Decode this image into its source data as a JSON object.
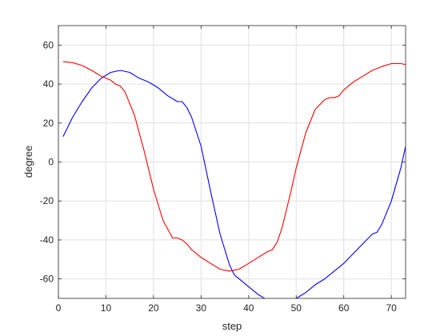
{
  "chart_data": {
    "type": "line",
    "xlabel": "step",
    "ylabel": "degree",
    "xlim": [
      0,
      73
    ],
    "ylim": [
      -70,
      70
    ],
    "grid": true,
    "xticks": [
      0,
      10,
      20,
      30,
      40,
      50,
      60,
      70
    ],
    "yticks": [
      -60,
      -40,
      -20,
      0,
      20,
      40,
      60
    ],
    "series": [
      {
        "color": "#0000ff",
        "x": [
          1,
          3,
          5,
          7,
          9,
          11,
          13,
          15,
          17,
          19,
          21,
          23,
          25,
          26,
          27,
          28,
          30,
          32,
          34,
          36,
          37,
          38,
          40,
          42,
          44,
          45,
          46,
          48,
          50,
          52,
          54,
          56,
          58,
          60,
          62,
          64,
          66,
          67,
          68,
          70,
          72,
          73
        ],
        "y": [
          13,
          23,
          31,
          38,
          43,
          46,
          47,
          46,
          43,
          41,
          38,
          34,
          31,
          31,
          28,
          23,
          8,
          -15,
          -37,
          -53,
          -58,
          -60,
          -64,
          -68,
          -71,
          -72,
          -73,
          -72,
          -70,
          -67,
          -63,
          -60,
          -56,
          -52,
          -47,
          -42,
          -37,
          -36,
          -32,
          -20,
          -3,
          8
        ]
      },
      {
        "color": "#ff0000",
        "x": [
          1,
          3,
          5,
          7,
          9,
          10,
          11,
          12,
          13,
          14,
          16,
          18,
          20,
          22,
          24,
          25,
          26,
          27,
          28,
          30,
          32,
          34,
          36,
          37,
          38,
          40,
          42,
          44,
          45,
          46,
          47,
          48,
          49,
          50,
          52,
          54,
          56,
          57,
          58,
          59,
          60,
          62,
          64,
          66,
          68,
          70,
          71,
          72,
          73
        ],
        "y": [
          51.5,
          51,
          49.5,
          47,
          44,
          43,
          42,
          40,
          39,
          36,
          24,
          6,
          -14,
          -30,
          -39,
          -39,
          -40,
          -42,
          -45,
          -49,
          -52,
          -55,
          -56,
          -55.5,
          -55,
          -52,
          -49,
          -46,
          -45,
          -41,
          -34,
          -24,
          -14,
          -3,
          15,
          27,
          32,
          33,
          33,
          34,
          37,
          41,
          44,
          47,
          49,
          50.5,
          50.5,
          50.5,
          50
        ]
      }
    ]
  }
}
